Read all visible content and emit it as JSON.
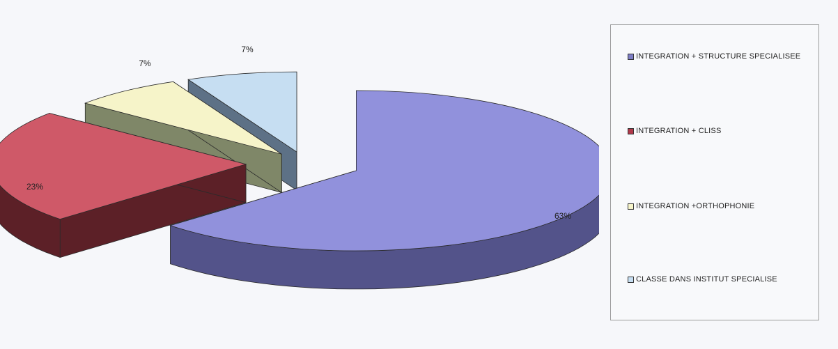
{
  "chart_data": {
    "type": "pie",
    "style": "3d-exploded",
    "categories": [
      "INTEGRATION + STRUCTURE SPECIALISEE",
      "INTEGRATION + CLISS",
      "INTEGRATION +ORTHOPHONIE",
      "CLASSE DANS INSTITUT SPECIALISE"
    ],
    "values": [
      63,
      23,
      7,
      7
    ],
    "data_labels": [
      "63%",
      "23%",
      "7%",
      "7%"
    ],
    "colors": [
      "#9191dc",
      "#cf5968",
      "#f6f4c9",
      "#c6def2"
    ],
    "side_colors": [
      "#53538a",
      "#5c2027",
      "#7f8768",
      "#5d7186"
    ],
    "legend_position": "right",
    "title": ""
  },
  "legend": {
    "items": [
      {
        "label": "INTEGRATION + STRUCTURE SPECIALISEE",
        "color": "#7d7dc4"
      },
      {
        "label": "INTEGRATION + CLISS",
        "color": "#b0384a"
      },
      {
        "label": "INTEGRATION +ORTHOPHONIE",
        "color": "#f6f4c9"
      },
      {
        "label": "CLASSE DANS INSTITUT SPECIALISE",
        "color": "#c6def2"
      }
    ]
  }
}
